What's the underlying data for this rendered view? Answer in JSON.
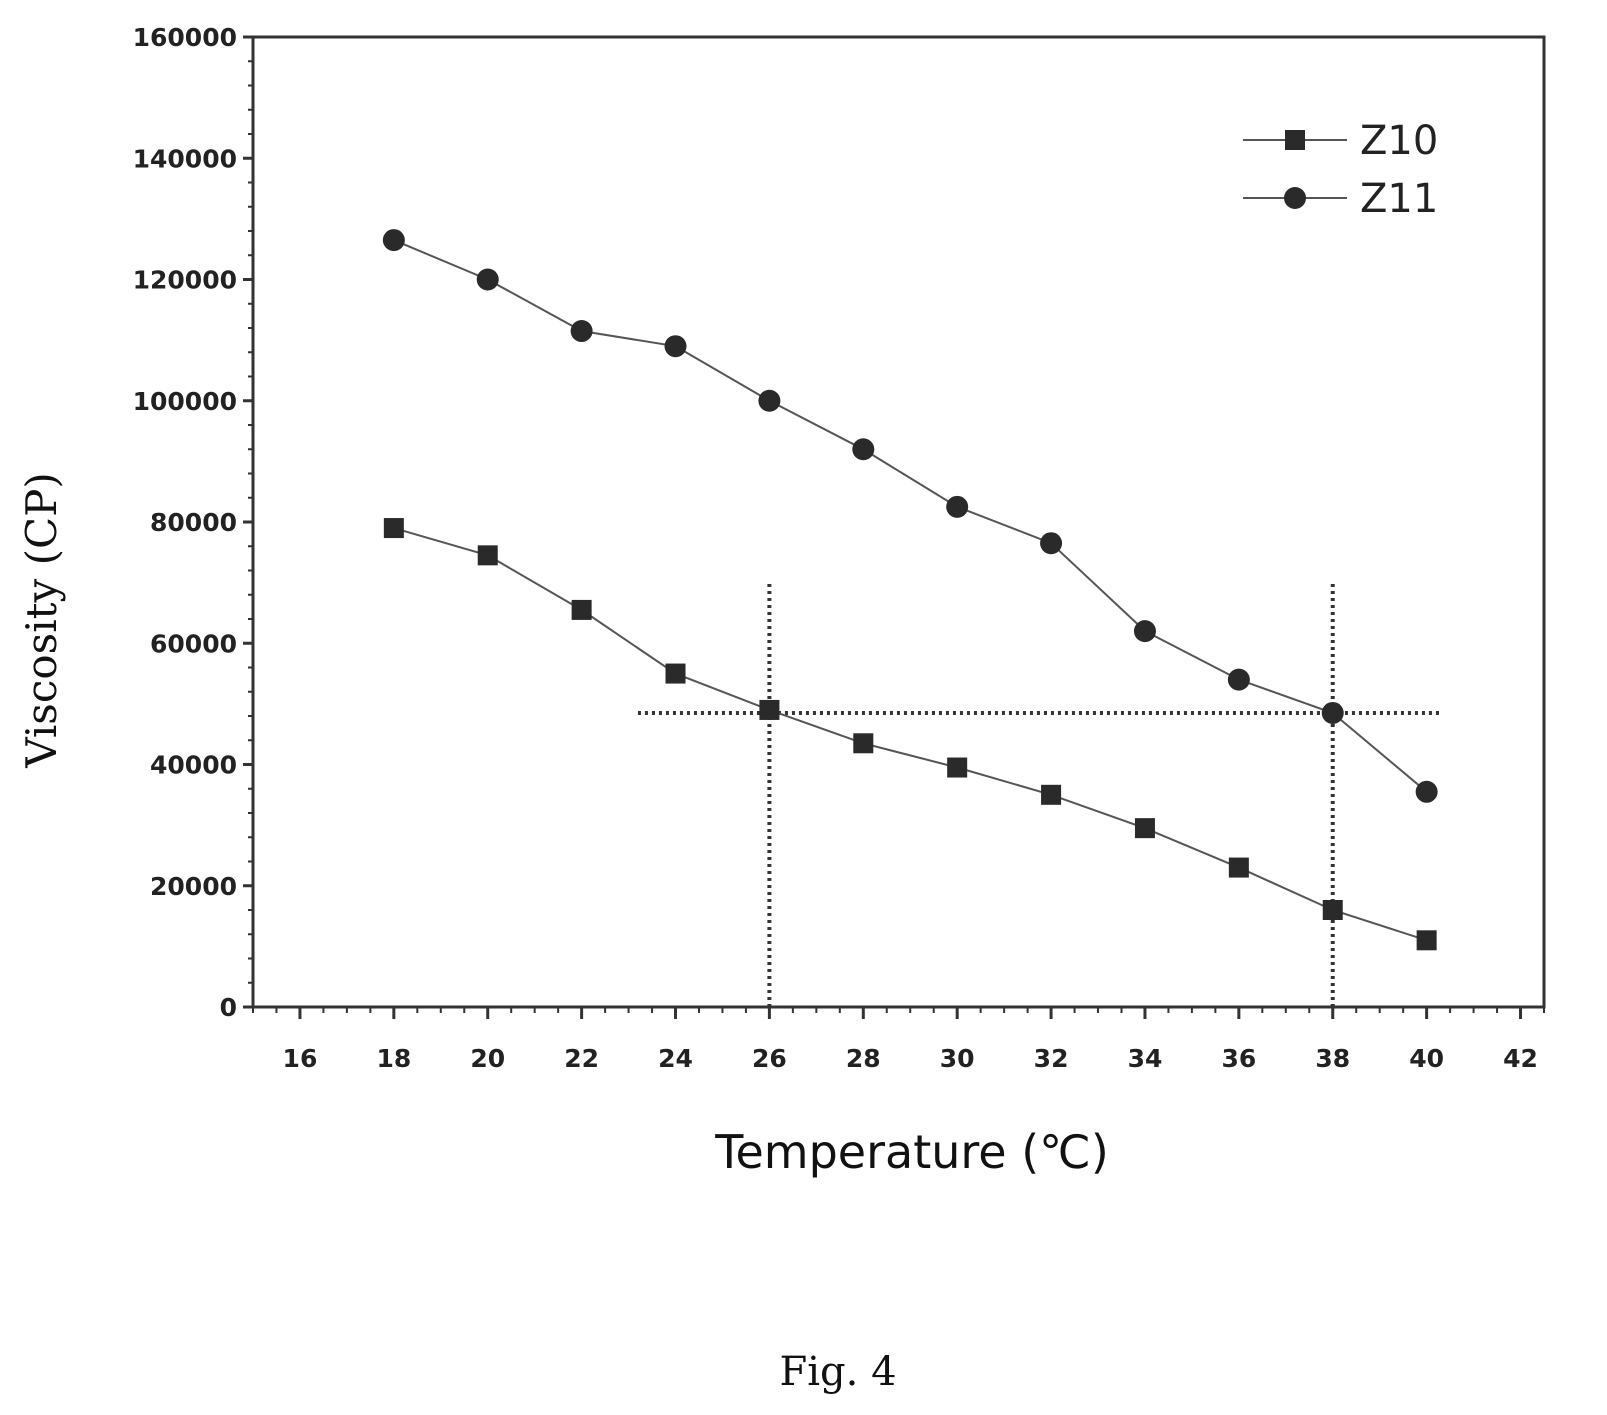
{
  "chart_data": {
    "type": "line",
    "xlabel": "Temperature (℃)",
    "ylabel": "Viscosity (CP)",
    "xlim": [
      15,
      42.5
    ],
    "ylim": [
      0,
      160000
    ],
    "xticks": [
      16,
      18,
      20,
      22,
      24,
      26,
      28,
      30,
      32,
      34,
      36,
      38,
      40,
      42
    ],
    "yticks": [
      0,
      20000,
      40000,
      60000,
      80000,
      100000,
      120000,
      140000,
      160000
    ],
    "grid": false,
    "legend_position": "top-right",
    "series": [
      {
        "name": "Z10",
        "marker": "square",
        "x": [
          18,
          20,
          22,
          24,
          26,
          28,
          30,
          32,
          34,
          36,
          38,
          40
        ],
        "y": [
          79000,
          74500,
          65500,
          55000,
          49000,
          43500,
          39500,
          35000,
          29500,
          23000,
          16000,
          11000
        ]
      },
      {
        "name": "Z11",
        "marker": "circle",
        "x": [
          18,
          20,
          22,
          24,
          26,
          28,
          30,
          32,
          34,
          36,
          38,
          40
        ],
        "y": [
          126500,
          120000,
          111500,
          109000,
          100000,
          92000,
          82500,
          76500,
          62000,
          54000,
          48500,
          35500
        ]
      }
    ],
    "reference_lines": [
      {
        "orientation": "horizontal",
        "value": 48500,
        "from": 23.2,
        "to": 40.3
      },
      {
        "orientation": "vertical",
        "value": 26,
        "from": 0,
        "to": 70000
      },
      {
        "orientation": "vertical",
        "value": 38,
        "from": 0,
        "to": 70000
      }
    ],
    "colors": {
      "series": "#2a2a2a",
      "axis": "#333333",
      "reference": "#333333"
    }
  },
  "caption": "Fig. 4"
}
